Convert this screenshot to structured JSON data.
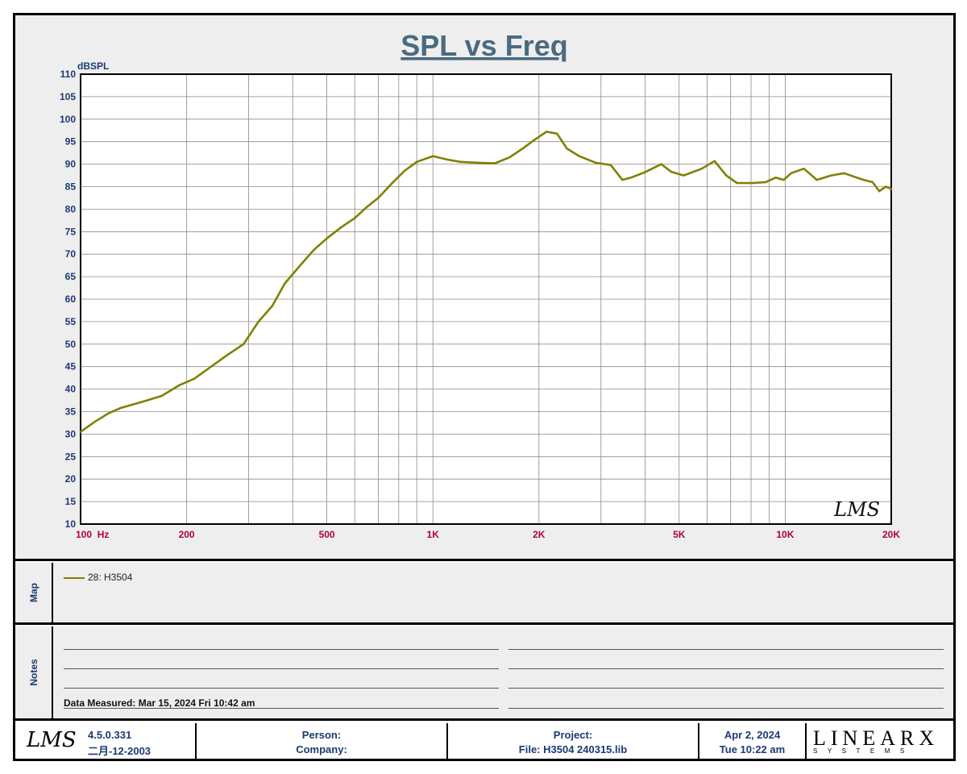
{
  "chart_data": {
    "type": "line",
    "title": "SPL vs Freq",
    "ylabel": "dBSPL",
    "xlabel": "",
    "x_scale": "log",
    "xlim": [
      100,
      20000
    ],
    "ylim": [
      10,
      110
    ],
    "y_ticks": [
      10,
      15,
      20,
      25,
      30,
      35,
      40,
      45,
      50,
      55,
      60,
      65,
      70,
      75,
      80,
      85,
      90,
      95,
      100,
      105,
      110
    ],
    "x_tick_labels": [
      {
        "value": 100,
        "label": "100  Hz"
      },
      {
        "value": 200,
        "label": "200"
      },
      {
        "value": 500,
        "label": "500"
      },
      {
        "value": 1000,
        "label": "1K"
      },
      {
        "value": 2000,
        "label": "2K"
      },
      {
        "value": 5000,
        "label": "5K"
      },
      {
        "value": 10000,
        "label": "10K"
      },
      {
        "value": 20000,
        "label": "20K"
      }
    ],
    "grid": true,
    "series": [
      {
        "name": "28: H3504",
        "color": "#808000",
        "x": [
          100,
          110,
          120,
          130,
          150,
          170,
          190,
          210,
          230,
          260,
          290,
          320,
          350,
          380,
          420,
          460,
          500,
          550,
          600,
          650,
          700,
          760,
          830,
          900,
          1000,
          1100,
          1200,
          1350,
          1500,
          1650,
          1800,
          1950,
          2100,
          2250,
          2400,
          2600,
          2900,
          3200,
          3450,
          3650,
          4000,
          4450,
          4750,
          5150,
          5800,
          6300,
          6800,
          7300,
          8100,
          8800,
          9400,
          9900,
          10400,
          11300,
          12300,
          13500,
          14700,
          15700,
          16700,
          17700,
          18500,
          19300,
          20000
        ],
        "y": [
          30.5,
          32.8,
          34.6,
          35.8,
          37.2,
          38.5,
          40.8,
          42.3,
          44.5,
          47.5,
          50.0,
          55.0,
          58.5,
          63.5,
          67.5,
          71.0,
          73.5,
          76.0,
          78.0,
          80.5,
          82.5,
          85.5,
          88.5,
          90.5,
          91.8,
          91.0,
          90.5,
          90.3,
          90.2,
          91.5,
          93.5,
          95.5,
          97.2,
          96.8,
          93.5,
          91.8,
          90.3,
          89.8,
          86.5,
          87.0,
          88.2,
          90.0,
          88.3,
          87.5,
          89.0,
          90.7,
          87.5,
          85.8,
          85.8,
          86.0,
          87.0,
          86.5,
          88.0,
          89.0,
          86.5,
          87.5,
          88.0,
          87.2,
          86.5,
          86.0,
          84.0,
          85.0,
          84.5
        ]
      }
    ]
  },
  "map": {
    "label": "Map",
    "legend_text": "28: H3504"
  },
  "notes": {
    "label": "Notes",
    "data_measured": "Data Measured: Mar 15, 2024  Fri 10:42 am"
  },
  "footer": {
    "logo": "LMS",
    "version": "4.5.0.331",
    "version_date": "二月-12-2003",
    "person_label": "Person:",
    "company_label": "Company:",
    "project_label": "Project:",
    "file_text": "File: H3504    240315.lib",
    "date": "Apr  2, 2024",
    "time": "Tue 10:22 am",
    "brand_main": "LINEARX",
    "brand_sub": "SYSTEMS"
  },
  "watermark": "LMS"
}
